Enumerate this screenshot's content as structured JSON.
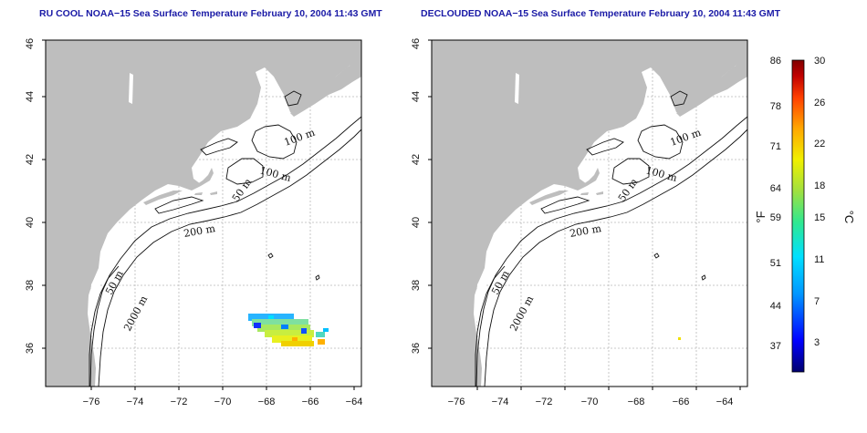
{
  "left_panel": {
    "title": "RU COOL NOAA−15 Sea Surface Temperature February 10, 2004 11:43 GMT",
    "contour_labels": [
      "100 m",
      "100 m",
      "50 m",
      "200 m",
      "50 m",
      "2000 m"
    ]
  },
  "right_panel": {
    "title": "DECLOUDED NOAA−15 Sea Surface Temperature February 10, 2004 11:43 GMT",
    "contour_labels": [
      "100 m",
      "100 m",
      "50 m",
      "200 m",
      "50 m",
      "2000 m"
    ]
  },
  "axes": {
    "x_ticks": [
      "−76",
      "−74",
      "−72",
      "−70",
      "−68",
      "−66",
      "−64"
    ],
    "y_ticks": [
      "36",
      "38",
      "40",
      "42",
      "44",
      "46"
    ],
    "lon_range": [
      -77,
      -63
    ],
    "lat_range": [
      35,
      46
    ],
    "grid": true
  },
  "colorbar": {
    "fahrenheit_label": "°F",
    "celsius_label": "°C",
    "fahrenheit_ticks": [
      "86",
      "78",
      "71",
      "64",
      "59",
      "51",
      "44",
      "37"
    ],
    "celsius_ticks": [
      "30",
      "26",
      "22",
      "18",
      "15",
      "11",
      "7",
      "3"
    ],
    "celsius_range": [
      0,
      30
    ],
    "colors": [
      "#00006e",
      "#0000ff",
      "#0096ff",
      "#00e0ff",
      "#30e890",
      "#a0e040",
      "#f0f000",
      "#ffa800",
      "#ff4000",
      "#c00000",
      "#800000"
    ]
  },
  "colors": {
    "title": "#1a1aa6",
    "land": "#bebebe",
    "grid": "#b9b9b9"
  }
}
